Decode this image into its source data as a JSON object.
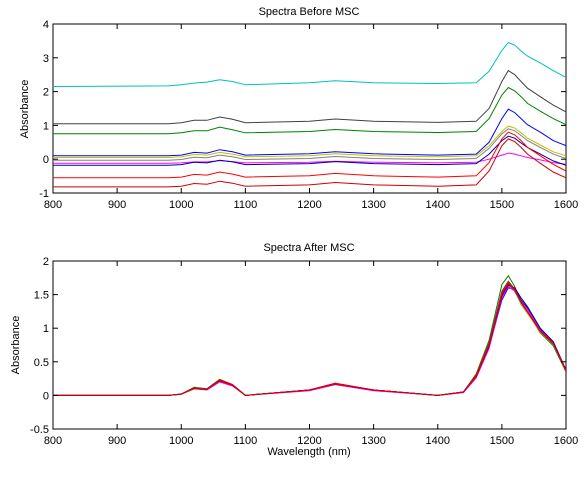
{
  "chart_data": [
    {
      "type": "line",
      "title": "Spectra Before MSC",
      "xlabel": "",
      "ylabel": "Absorbance",
      "xlim": [
        800,
        1600
      ],
      "ylim": [
        -1,
        4
      ],
      "xticks": [
        "800",
        "900",
        "1000",
        "1100",
        "1200",
        "1300",
        "1400",
        "1500",
        "1600"
      ],
      "yticks": [
        "-1",
        "0",
        "1",
        "2",
        "3",
        "4"
      ],
      "grid": false,
      "series": [
        {
          "color": "#00bfbf",
          "x": [
            800,
            980,
            1000,
            1020,
            1040,
            1060,
            1080,
            1100,
            1200,
            1240,
            1300,
            1400,
            1460,
            1480,
            1500,
            1510,
            1520,
            1530,
            1540,
            1560,
            1580,
            1600
          ],
          "y": [
            2.15,
            2.17,
            2.2,
            2.25,
            2.28,
            2.35,
            2.3,
            2.2,
            2.26,
            2.32,
            2.26,
            2.24,
            2.26,
            2.6,
            3.22,
            3.45,
            3.38,
            3.2,
            3.05,
            2.85,
            2.62,
            2.42
          ]
        },
        {
          "color": "#404040",
          "x": [
            800,
            980,
            1000,
            1020,
            1040,
            1060,
            1080,
            1100,
            1200,
            1240,
            1300,
            1400,
            1460,
            1480,
            1500,
            1510,
            1520,
            1530,
            1540,
            1560,
            1580,
            1600
          ],
          "y": [
            1.05,
            1.05,
            1.08,
            1.15,
            1.15,
            1.25,
            1.18,
            1.08,
            1.12,
            1.19,
            1.12,
            1.09,
            1.12,
            1.5,
            2.3,
            2.62,
            2.5,
            2.3,
            2.1,
            1.85,
            1.6,
            1.4
          ]
        },
        {
          "color": "#008000",
          "x": [
            800,
            980,
            1000,
            1020,
            1040,
            1060,
            1080,
            1100,
            1200,
            1240,
            1300,
            1400,
            1460,
            1480,
            1500,
            1510,
            1520,
            1530,
            1540,
            1560,
            1580,
            1600
          ],
          "y": [
            0.75,
            0.75,
            0.78,
            0.84,
            0.84,
            0.95,
            0.87,
            0.78,
            0.82,
            0.88,
            0.82,
            0.79,
            0.82,
            1.2,
            1.9,
            2.12,
            2.02,
            1.85,
            1.65,
            1.42,
            1.2,
            1.02
          ]
        },
        {
          "color": "#0000ff",
          "x": [
            800,
            980,
            1000,
            1020,
            1040,
            1060,
            1080,
            1100,
            1200,
            1240,
            1300,
            1400,
            1460,
            1480,
            1500,
            1510,
            1520,
            1530,
            1540,
            1560,
            1580,
            1600
          ],
          "y": [
            0.1,
            0.1,
            0.12,
            0.2,
            0.18,
            0.28,
            0.22,
            0.12,
            0.16,
            0.22,
            0.16,
            0.12,
            0.15,
            0.5,
            1.2,
            1.48,
            1.38,
            1.2,
            1.02,
            0.8,
            0.55,
            0.4
          ]
        },
        {
          "color": "#c0c000",
          "x": [
            800,
            980,
            1000,
            1020,
            1040,
            1060,
            1080,
            1100,
            1200,
            1240,
            1300,
            1400,
            1460,
            1480,
            1500,
            1510,
            1520,
            1530,
            1540,
            1560,
            1580,
            1600
          ],
          "y": [
            0.05,
            0.05,
            0.07,
            0.14,
            0.12,
            0.2,
            0.15,
            0.07,
            0.1,
            0.16,
            0.1,
            0.07,
            0.1,
            0.4,
            0.82,
            0.98,
            0.92,
            0.78,
            0.62,
            0.42,
            0.22,
            0.1
          ]
        },
        {
          "color": "#808080",
          "x": [
            800,
            980,
            1000,
            1020,
            1040,
            1060,
            1080,
            1100,
            1200,
            1240,
            1300,
            1400,
            1460,
            1480,
            1500,
            1510,
            1520,
            1530,
            1540,
            1560,
            1580,
            1600
          ],
          "y": [
            -0.03,
            -0.03,
            -0.01,
            0.06,
            0.04,
            0.12,
            0.07,
            -0.01,
            0.02,
            0.08,
            0.02,
            -0.01,
            0.02,
            0.32,
            0.75,
            0.9,
            0.84,
            0.7,
            0.55,
            0.35,
            0.15,
            0.02
          ]
        },
        {
          "color": "#ff00ff",
          "x": [
            800,
            980,
            1000,
            1020,
            1040,
            1060,
            1080,
            1100,
            1200,
            1240,
            1300,
            1400,
            1460,
            1480,
            1500,
            1510,
            1520,
            1530,
            1540,
            1560,
            1580,
            1600
          ],
          "y": [
            -0.12,
            -0.12,
            -0.11,
            -0.08,
            -0.08,
            -0.04,
            -0.07,
            -0.11,
            -0.09,
            -0.06,
            -0.09,
            -0.11,
            -0.09,
            0.0,
            0.12,
            0.18,
            0.15,
            0.1,
            0.05,
            -0.02,
            -0.1,
            -0.15
          ]
        },
        {
          "color": "#0000a0",
          "x": [
            800,
            980,
            1000,
            1020,
            1040,
            1060,
            1080,
            1100,
            1200,
            1240,
            1300,
            1400,
            1460,
            1480,
            1500,
            1510,
            1520,
            1530,
            1540,
            1560,
            1580,
            1600
          ],
          "y": [
            -0.18,
            -0.18,
            -0.16,
            -0.09,
            -0.11,
            -0.03,
            -0.08,
            -0.16,
            -0.13,
            -0.07,
            -0.13,
            -0.16,
            -0.13,
            0.15,
            0.55,
            0.68,
            0.62,
            0.48,
            0.35,
            0.15,
            -0.05,
            -0.18
          ]
        },
        {
          "color": "#ff0000",
          "x": [
            800,
            980,
            1000,
            1020,
            1040,
            1060,
            1080,
            1100,
            1200,
            1240,
            1300,
            1400,
            1460,
            1480,
            1500,
            1510,
            1520,
            1530,
            1540,
            1560,
            1580,
            1600
          ],
          "y": [
            -0.55,
            -0.55,
            -0.53,
            -0.45,
            -0.47,
            -0.38,
            -0.44,
            -0.53,
            -0.49,
            -0.42,
            -0.49,
            -0.53,
            -0.49,
            -0.1,
            0.6,
            0.8,
            0.72,
            0.55,
            0.35,
            0.1,
            -0.15,
            -0.35
          ]
        },
        {
          "color": "#d00000",
          "x": [
            800,
            980,
            1000,
            1020,
            1040,
            1060,
            1080,
            1100,
            1200,
            1240,
            1300,
            1400,
            1460,
            1480,
            1500,
            1510,
            1520,
            1530,
            1540,
            1560,
            1580,
            1600
          ],
          "y": [
            -0.82,
            -0.82,
            -0.8,
            -0.72,
            -0.74,
            -0.65,
            -0.71,
            -0.8,
            -0.76,
            -0.69,
            -0.76,
            -0.8,
            -0.76,
            -0.35,
            0.4,
            0.6,
            0.52,
            0.35,
            0.15,
            -0.12,
            -0.38,
            -0.55
          ]
        }
      ]
    },
    {
      "type": "line",
      "title": "Spectra After MSC",
      "xlabel": "Wavelength (nm)",
      "ylabel": "Absorbance",
      "xlim": [
        800,
        1600
      ],
      "ylim": [
        -0.5,
        2
      ],
      "xticks": [
        "800",
        "900",
        "1000",
        "1100",
        "1200",
        "1300",
        "1400",
        "1500",
        "1600"
      ],
      "yticks": [
        "-0.5",
        "0",
        "0.5",
        "1",
        "1.5",
        "2"
      ],
      "grid": false,
      "series": [
        {
          "color": "#00bfbf",
          "x": [
            800,
            980,
            1000,
            1020,
            1040,
            1060,
            1080,
            1100,
            1200,
            1240,
            1300,
            1400,
            1440,
            1460,
            1480,
            1500,
            1510,
            1520,
            1530,
            1540,
            1560,
            1580,
            1600
          ],
          "y": [
            0.0,
            0.0,
            0.02,
            0.1,
            0.09,
            0.22,
            0.15,
            0.0,
            0.08,
            0.17,
            0.08,
            0.0,
            0.05,
            0.28,
            0.75,
            1.5,
            1.65,
            1.55,
            1.35,
            1.22,
            0.95,
            0.75,
            0.36
          ]
        },
        {
          "color": "#404040",
          "x": [
            800,
            980,
            1000,
            1020,
            1040,
            1060,
            1080,
            1100,
            1200,
            1240,
            1300,
            1400,
            1440,
            1460,
            1480,
            1500,
            1510,
            1520,
            1530,
            1540,
            1560,
            1580,
            1600
          ],
          "y": [
            0.0,
            0.0,
            0.02,
            0.11,
            0.09,
            0.23,
            0.16,
            0.0,
            0.08,
            0.18,
            0.08,
            0.0,
            0.05,
            0.3,
            0.78,
            1.55,
            1.7,
            1.58,
            1.38,
            1.24,
            0.96,
            0.77,
            0.37
          ]
        },
        {
          "color": "#008000",
          "x": [
            800,
            980,
            1000,
            1020,
            1040,
            1060,
            1080,
            1100,
            1200,
            1240,
            1300,
            1400,
            1440,
            1460,
            1480,
            1500,
            1510,
            1520,
            1530,
            1540,
            1560,
            1580,
            1600
          ],
          "y": [
            0.0,
            0.0,
            0.02,
            0.12,
            0.1,
            0.24,
            0.16,
            0.0,
            0.08,
            0.18,
            0.08,
            0.0,
            0.05,
            0.32,
            0.82,
            1.65,
            1.78,
            1.62,
            1.4,
            1.24,
            0.93,
            0.74,
            0.35
          ]
        },
        {
          "color": "#0000ff",
          "x": [
            800,
            980,
            1000,
            1020,
            1040,
            1060,
            1080,
            1100,
            1200,
            1240,
            1300,
            1400,
            1440,
            1460,
            1480,
            1500,
            1510,
            1520,
            1530,
            1540,
            1560,
            1580,
            1600
          ],
          "y": [
            0.0,
            0.0,
            0.02,
            0.1,
            0.09,
            0.21,
            0.15,
            0.0,
            0.08,
            0.17,
            0.08,
            0.0,
            0.05,
            0.27,
            0.72,
            1.42,
            1.6,
            1.58,
            1.42,
            1.3,
            0.98,
            0.8,
            0.38
          ]
        },
        {
          "color": "#c0c000",
          "x": [
            800,
            980,
            1000,
            1020,
            1040,
            1060,
            1080,
            1100,
            1200,
            1240,
            1300,
            1400,
            1440,
            1460,
            1480,
            1500,
            1510,
            1520,
            1530,
            1540,
            1560,
            1580,
            1600
          ],
          "y": [
            0.0,
            0.0,
            0.02,
            0.11,
            0.09,
            0.22,
            0.15,
            0.0,
            0.08,
            0.17,
            0.08,
            0.0,
            0.05,
            0.29,
            0.76,
            1.52,
            1.68,
            1.56,
            1.36,
            1.22,
            0.94,
            0.76,
            0.36
          ]
        },
        {
          "color": "#ff00ff",
          "x": [
            800,
            980,
            1000,
            1020,
            1040,
            1060,
            1080,
            1100,
            1200,
            1240,
            1300,
            1400,
            1440,
            1460,
            1480,
            1500,
            1510,
            1520,
            1530,
            1540,
            1560,
            1580,
            1600
          ],
          "y": [
            0.0,
            0.0,
            0.02,
            0.1,
            0.08,
            0.2,
            0.14,
            0.0,
            0.07,
            0.16,
            0.07,
            0.0,
            0.04,
            0.26,
            0.7,
            1.45,
            1.62,
            1.55,
            1.4,
            1.28,
            0.97,
            0.79,
            0.38
          ]
        },
        {
          "color": "#0000a0",
          "x": [
            800,
            980,
            1000,
            1020,
            1040,
            1060,
            1080,
            1100,
            1200,
            1240,
            1300,
            1400,
            1440,
            1460,
            1480,
            1500,
            1510,
            1520,
            1530,
            1540,
            1560,
            1580,
            1600
          ],
          "y": [
            0.0,
            0.0,
            0.02,
            0.11,
            0.09,
            0.22,
            0.15,
            0.0,
            0.08,
            0.17,
            0.08,
            0.0,
            0.05,
            0.28,
            0.74,
            1.48,
            1.64,
            1.6,
            1.45,
            1.32,
            1.0,
            0.8,
            0.37
          ]
        },
        {
          "color": "#ff0000",
          "x": [
            800,
            980,
            1000,
            1020,
            1040,
            1060,
            1080,
            1100,
            1200,
            1240,
            1300,
            1400,
            1440,
            1460,
            1480,
            1500,
            1510,
            1520,
            1530,
            1540,
            1560,
            1580,
            1600
          ],
          "y": [
            0.0,
            0.0,
            0.02,
            0.11,
            0.09,
            0.23,
            0.16,
            0.0,
            0.08,
            0.18,
            0.08,
            0.0,
            0.05,
            0.3,
            0.77,
            1.53,
            1.68,
            1.58,
            1.4,
            1.25,
            0.96,
            0.78,
            0.37
          ]
        },
        {
          "color": "#d00000",
          "x": [
            800,
            980,
            1000,
            1020,
            1040,
            1060,
            1080,
            1100,
            1200,
            1240,
            1300,
            1400,
            1440,
            1460,
            1480,
            1500,
            1510,
            1520,
            1530,
            1540,
            1560,
            1580,
            1600
          ],
          "y": [
            0.0,
            0.0,
            0.02,
            0.1,
            0.09,
            0.22,
            0.15,
            0.0,
            0.08,
            0.17,
            0.08,
            0.0,
            0.05,
            0.28,
            0.75,
            1.5,
            1.66,
            1.57,
            1.38,
            1.24,
            0.95,
            0.77,
            0.36
          ]
        }
      ]
    }
  ]
}
